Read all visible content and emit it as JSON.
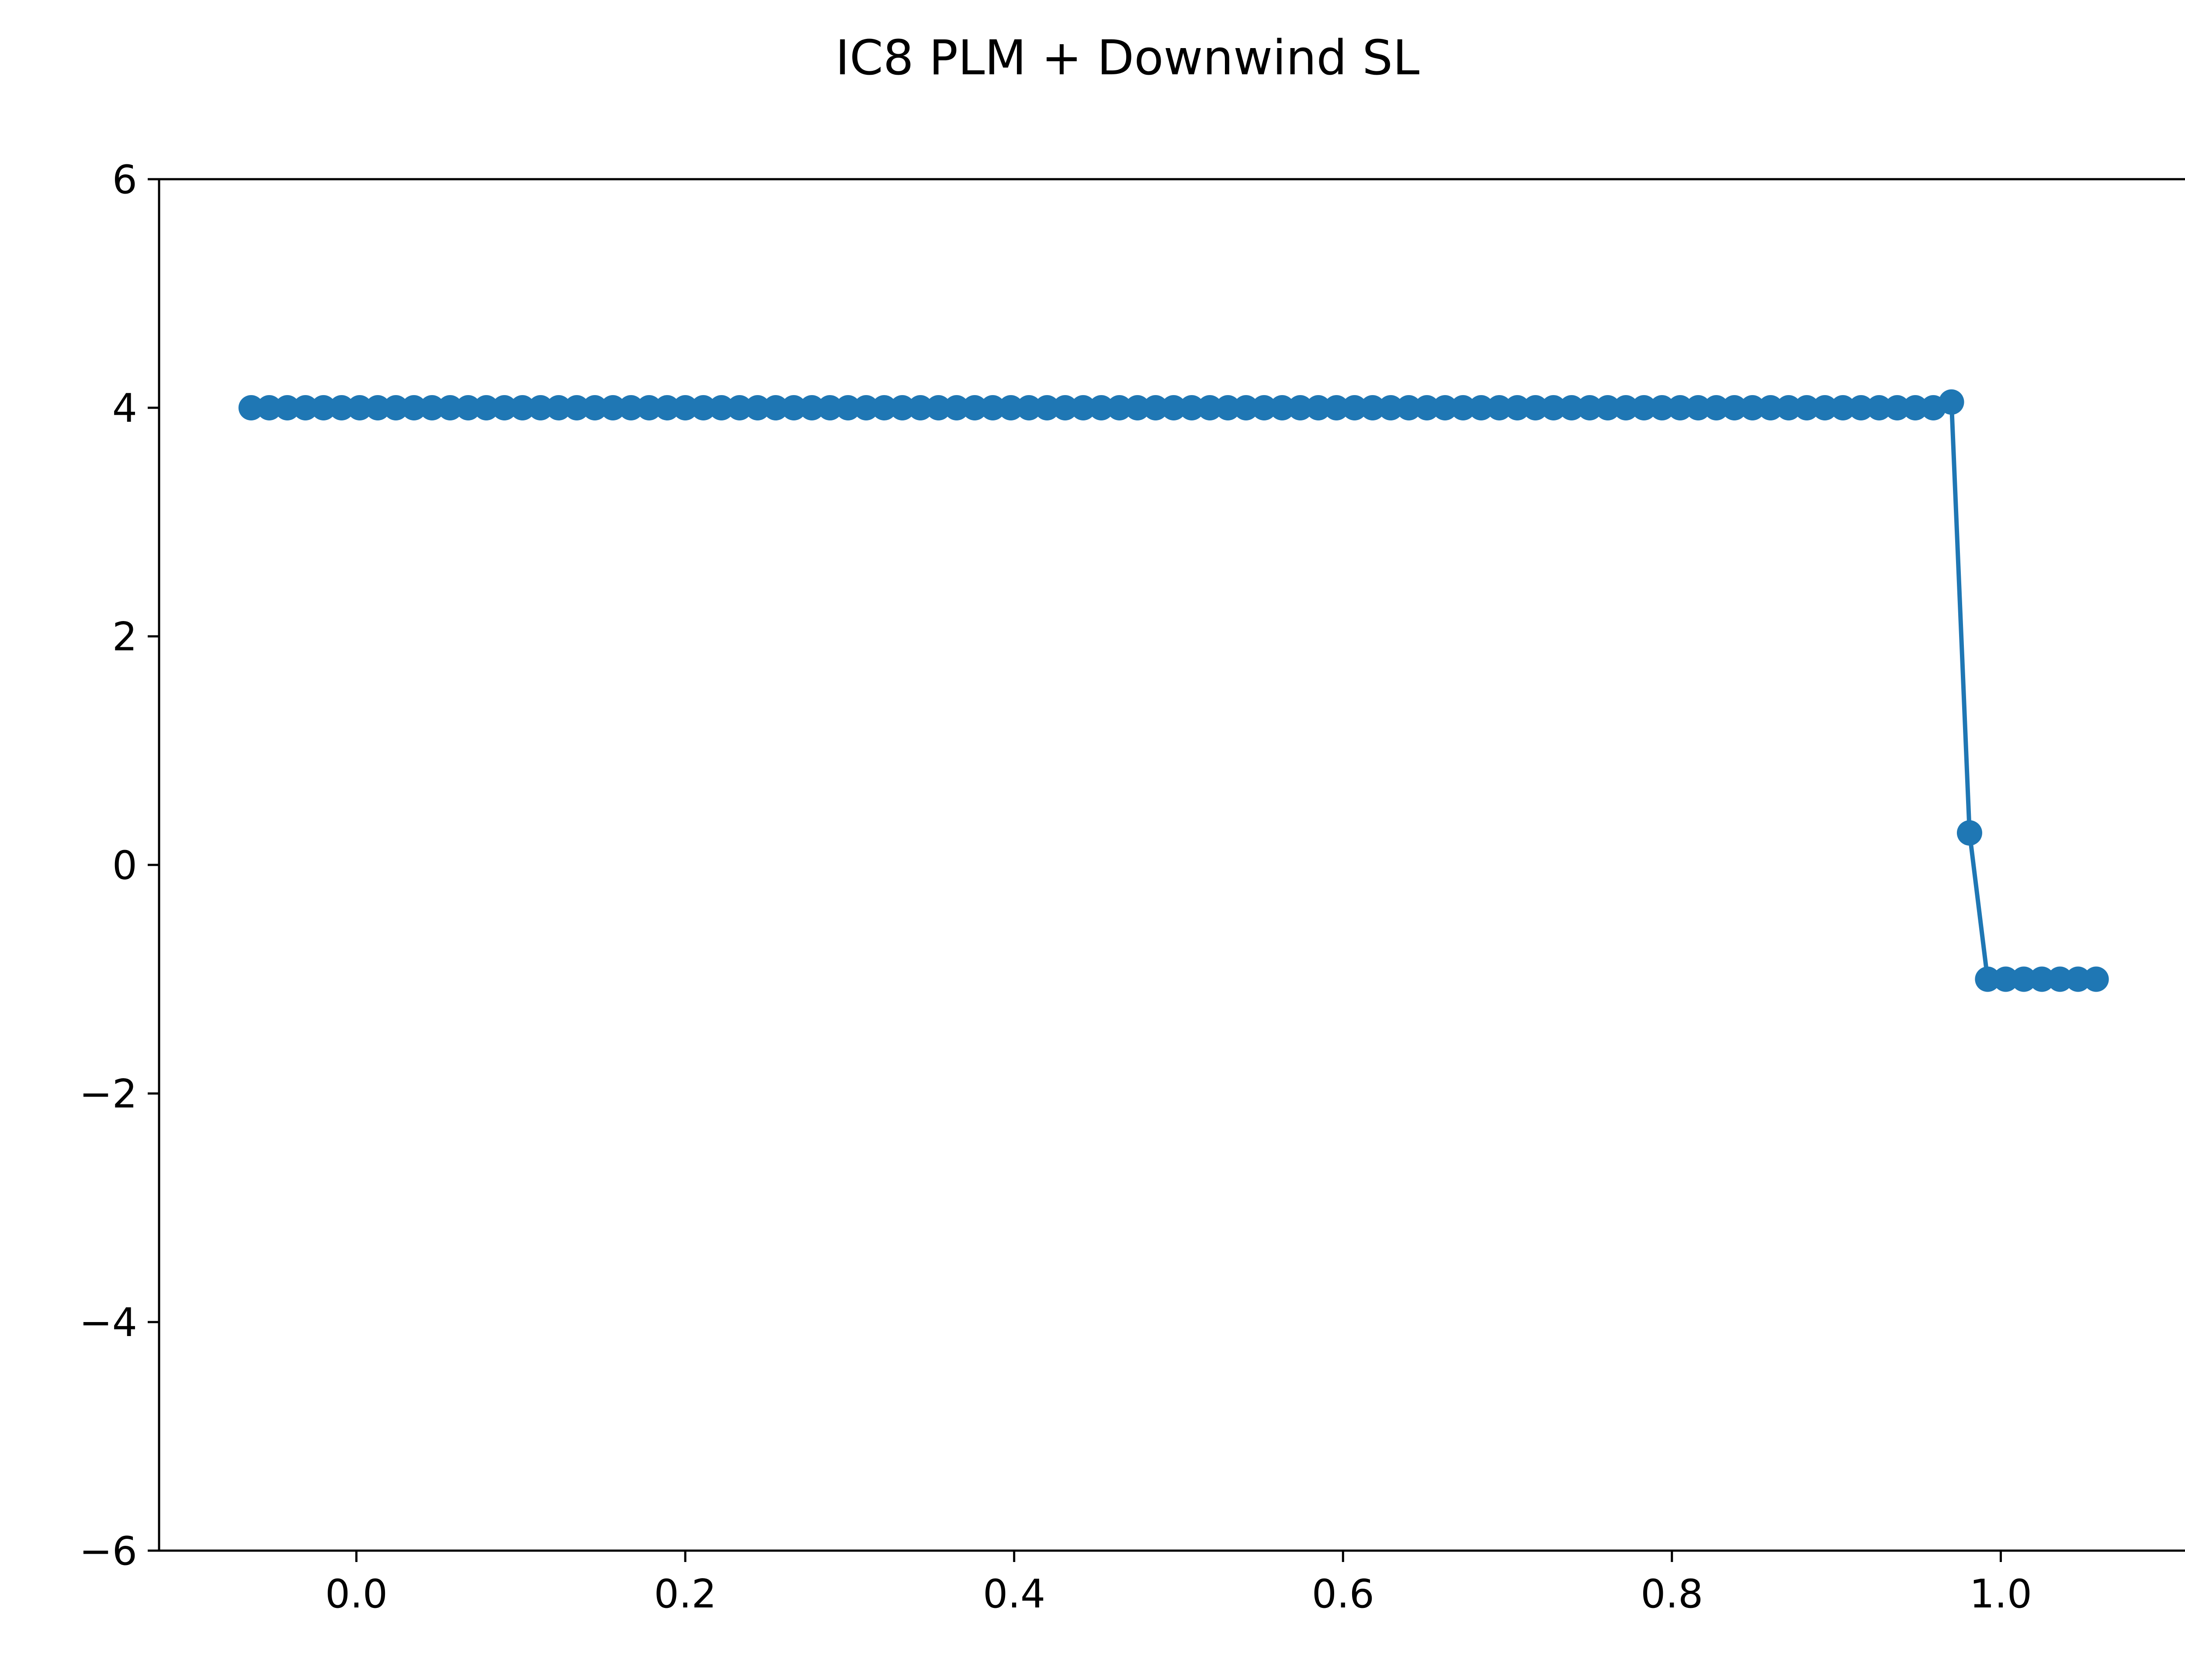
{
  "chart_data": {
    "type": "line",
    "title": "IC8 PLM + Downwind SL",
    "xlabel": "",
    "ylabel": "",
    "xlim": [
      -0.12,
      1.12
    ],
    "ylim": [
      -6,
      6
    ],
    "xticks": [
      0.0,
      0.2,
      0.4,
      0.6,
      0.8,
      1.0
    ],
    "xtick_labels": [
      "0.0",
      "0.2",
      "0.4",
      "0.6",
      "0.8",
      "1.0"
    ],
    "yticks": [
      -6,
      -4,
      -2,
      0,
      2,
      4,
      6
    ],
    "ytick_labels": [
      "−6",
      "−4",
      "−2",
      "0",
      "2",
      "4",
      "6"
    ],
    "grid": false,
    "legend": "none",
    "colors": {
      "series": "#1f77b4",
      "axes": "#000000",
      "background": "#ffffff"
    },
    "series": [
      {
        "marker": "circle",
        "x": [
          -0.064,
          -0.053,
          -0.042,
          -0.031,
          -0.02,
          -0.009,
          0.002,
          0.013,
          0.024,
          0.035,
          0.046,
          0.057,
          0.068,
          0.079,
          0.09,
          0.101,
          0.112,
          0.123,
          0.134,
          0.145,
          0.156,
          0.167,
          0.178,
          0.189,
          0.2,
          0.211,
          0.222,
          0.233,
          0.244,
          0.255,
          0.266,
          0.277,
          0.288,
          0.299,
          0.31,
          0.321,
          0.332,
          0.343,
          0.354,
          0.365,
          0.376,
          0.387,
          0.398,
          0.409,
          0.42,
          0.431,
          0.442,
          0.453,
          0.464,
          0.475,
          0.486,
          0.497,
          0.508,
          0.519,
          0.53,
          0.541,
          0.552,
          0.563,
          0.574,
          0.585,
          0.596,
          0.607,
          0.618,
          0.629,
          0.64,
          0.651,
          0.662,
          0.673,
          0.684,
          0.695,
          0.706,
          0.717,
          0.728,
          0.739,
          0.75,
          0.761,
          0.772,
          0.783,
          0.794,
          0.805,
          0.816,
          0.827,
          0.838,
          0.849,
          0.86,
          0.871,
          0.882,
          0.893,
          0.904,
          0.915,
          0.926,
          0.937,
          0.948,
          0.959,
          0.97,
          0.981,
          0.992,
          1.003,
          1.014,
          1.025,
          1.036,
          1.047,
          1.058
        ],
        "y": [
          4,
          4,
          4,
          4,
          4,
          4,
          4,
          4,
          4,
          4,
          4,
          4,
          4,
          4,
          4,
          4,
          4,
          4,
          4,
          4,
          4,
          4,
          4,
          4,
          4,
          4,
          4,
          4,
          4,
          4,
          4,
          4,
          4,
          4,
          4,
          4,
          4,
          4,
          4,
          4,
          4,
          4,
          4,
          4,
          4,
          4,
          4,
          4,
          4,
          4,
          4,
          4,
          4,
          4,
          4,
          4,
          4,
          4,
          4,
          4,
          4,
          4,
          4,
          4,
          4,
          4,
          4,
          4,
          4,
          4,
          4,
          4,
          4,
          4,
          4,
          4,
          4,
          4,
          4,
          4,
          4,
          4,
          4,
          4,
          4,
          4,
          4,
          4,
          4,
          4,
          4,
          4,
          4,
          4,
          4.05,
          0.28,
          -1,
          -1,
          -1,
          -1,
          -1,
          -1,
          -1
        ]
      }
    ]
  }
}
